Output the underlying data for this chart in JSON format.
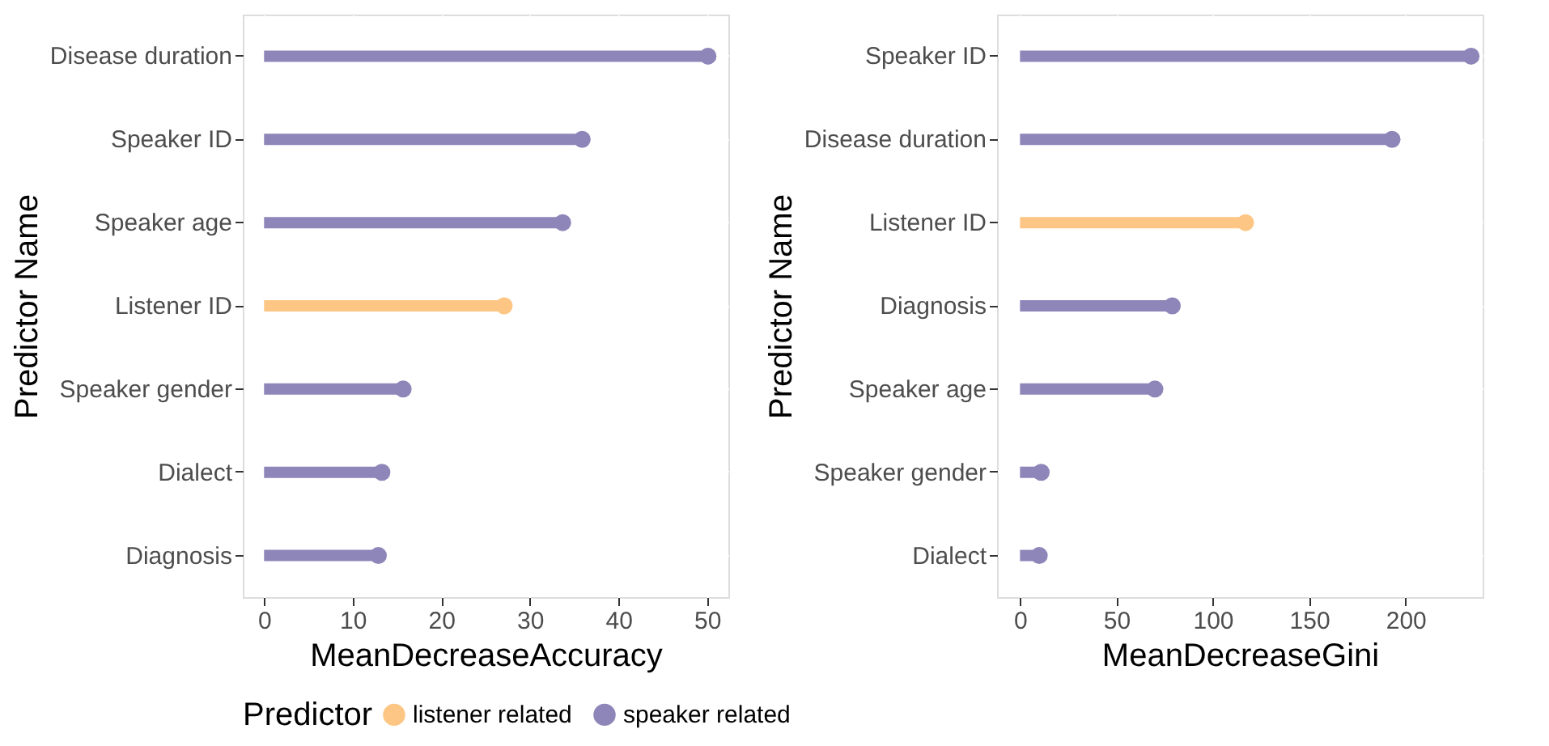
{
  "chart_data": [
    {
      "type": "lollipop",
      "orientation": "horizontal",
      "xlabel": "MeanDecreaseAccuracy",
      "ylabel": "Predictor Name",
      "legend_title": "Predictor",
      "legend": "bottom",
      "grid": true,
      "categories": [
        "Disease duration",
        "Speaker ID",
        "Speaker age",
        "Listener ID",
        "Speaker gender",
        "Dialect",
        "Diagnosis"
      ],
      "xlim": [
        -2.4,
        52.4
      ],
      "xticks": [
        0,
        10,
        20,
        30,
        40,
        50
      ],
      "series": [
        {
          "name": "listener related",
          "color": "#fdc685",
          "values": [
            null,
            null,
            null,
            27.1,
            null,
            null,
            null
          ]
        },
        {
          "name": "speaker related",
          "color": "#8e86b9",
          "values": [
            50.1,
            35.9,
            33.7,
            null,
            15.7,
            13.3,
            12.9
          ]
        }
      ]
    },
    {
      "type": "lollipop",
      "orientation": "horizontal",
      "xlabel": "MeanDecreaseGini",
      "ylabel": "Predictor Name",
      "grid": true,
      "categories": [
        "Speaker ID",
        "Disease duration",
        "Listener ID",
        "Diagnosis",
        "Speaker age",
        "Speaker gender",
        "Dialect"
      ],
      "xlim": [
        -11.9,
        240
      ],
      "xticks": [
        0,
        50,
        100,
        150,
        200
      ],
      "series": [
        {
          "name": "listener related",
          "color": "#fdc685",
          "values": [
            null,
            null,
            117,
            null,
            null,
            null,
            null
          ]
        },
        {
          "name": "speaker related",
          "color": "#8e86b9",
          "values": [
            234,
            193,
            null,
            79,
            70,
            11,
            10
          ]
        }
      ]
    }
  ]
}
